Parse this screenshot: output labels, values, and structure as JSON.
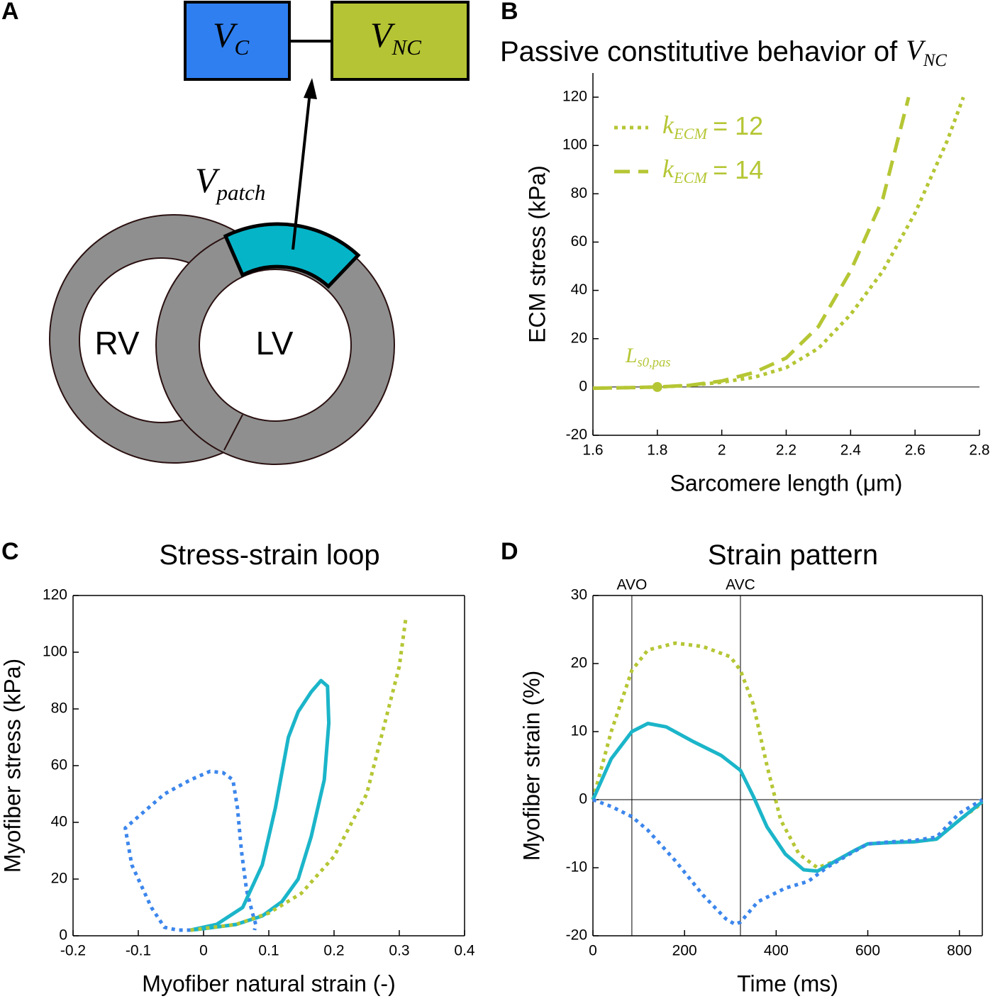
{
  "panels": [
    "A",
    "B",
    "C",
    "D"
  ],
  "diagram": {
    "boxes": [
      {
        "main": "V",
        "sub": "C"
      },
      {
        "main": "V",
        "sub": "NC"
      }
    ],
    "patch": {
      "main": "V",
      "sub": "patch"
    },
    "ventricles": [
      "RV",
      "LV"
    ]
  },
  "chart_data": [
    {
      "type": "line",
      "title": "Passive constitutive behavior of",
      "title_var": {
        "main": "V",
        "sub": "NC"
      },
      "x_label": "Sarcomere length (μm)",
      "y_label": "ECM stress (kPa)",
      "xlim": [
        1.6,
        2.8
      ],
      "xticks": [
        1.6,
        1.8,
        2,
        2.2,
        2.4,
        2.6,
        2.8
      ],
      "ylim": [
        -20,
        130
      ],
      "yticks": [
        -20,
        0,
        20,
        40,
        60,
        80,
        100,
        120
      ],
      "box": false,
      "zero_line": true,
      "legend": "upper left",
      "series": [
        {
          "name": {
            "main": "k",
            "sub": "ECM",
            "rest": "= 12"
          },
          "color": "#b5c634",
          "style": "dotted",
          "x": [
            1.6,
            1.7,
            1.8,
            1.9,
            2.0,
            2.1,
            2.2,
            2.3,
            2.4,
            2.5,
            2.6,
            2.7,
            2.75
          ],
          "values": [
            -0.5,
            -0.3,
            0,
            0.6,
            2,
            4,
            8,
            16,
            30,
            48,
            72,
            102,
            120
          ]
        },
        {
          "name": {
            "main": "k",
            "sub": "ECM",
            "rest": "= 14"
          },
          "color": "#b5c634",
          "style": "dashed",
          "x": [
            1.6,
            1.7,
            1.8,
            1.9,
            2.0,
            2.1,
            2.2,
            2.3,
            2.4,
            2.5,
            2.58
          ],
          "values": [
            -0.5,
            -0.3,
            0,
            0.7,
            2.5,
            6,
            12,
            25,
            48,
            78,
            120
          ]
        }
      ],
      "annotations": [
        {
          "label": {
            "main": "L",
            "sub": "s0,pas"
          },
          "x": 1.8,
          "y": 0
        }
      ]
    },
    {
      "type": "line",
      "title": "Stress-strain loop",
      "x_label": "Myofiber natural strain (-)",
      "y_label": "Myofiber stress (kPa)",
      "xlim": [
        -0.2,
        0.4
      ],
      "xticks": [
        -0.2,
        -0.1,
        0,
        0.1,
        0.2,
        0.3,
        0.4
      ],
      "ylim": [
        0,
        120
      ],
      "yticks": [
        0,
        20,
        40,
        60,
        80,
        100,
        120
      ],
      "box": true,
      "zero_line": false,
      "series": [
        {
          "color": "#3c86ec",
          "style": "dotted",
          "x": [
            -0.02,
            -0.04,
            -0.06,
            -0.08,
            -0.11,
            -0.12,
            -0.1,
            -0.06,
            -0.02,
            0.01,
            0.03,
            0.045,
            0.052,
            0.058,
            0.066,
            0.075,
            0.08,
            0.078
          ],
          "values": [
            2,
            2,
            3,
            10,
            25,
            38,
            42,
            50,
            55,
            58,
            57.5,
            55,
            45,
            30,
            16,
            8,
            4,
            2
          ]
        },
        {
          "color": "#1bb5c9",
          "style": "solid",
          "x": [
            -0.02,
            0.02,
            0.06,
            0.09,
            0.11,
            0.13,
            0.145,
            0.165,
            0.18,
            0.19,
            0.192,
            0.185,
            0.165,
            0.145,
            0.12,
            0.09,
            0.05,
            0.0,
            -0.02
          ],
          "values": [
            2,
            4,
            10,
            25,
            45,
            70,
            79,
            86,
            90,
            88,
            75,
            55,
            35,
            20,
            12,
            7,
            4,
            2.5,
            2
          ]
        },
        {
          "color": "#b5c634",
          "style": "dotted",
          "x": [
            -0.02,
            0.05,
            0.1,
            0.15,
            0.2,
            0.25,
            0.3,
            0.31
          ],
          "values": [
            2,
            4,
            8,
            15,
            28,
            50,
            95,
            112
          ]
        }
      ]
    },
    {
      "type": "line",
      "title": "Strain pattern",
      "x_label": "Time (ms)",
      "y_label": "Myofiber strain (%)",
      "xlim": [
        0,
        850
      ],
      "xticks": [
        0,
        200,
        400,
        600,
        800
      ],
      "ylim": [
        -20,
        30
      ],
      "yticks": [
        -20,
        -10,
        0,
        10,
        20,
        30
      ],
      "box": true,
      "zero_line": true,
      "markers": [
        {
          "label": "AVO",
          "x": 85
        },
        {
          "label": "AVC",
          "x": 322
        }
      ],
      "series": [
        {
          "color": "#b5c634",
          "style": "dotted",
          "x": [
            0,
            40,
            85,
            120,
            180,
            240,
            300,
            322,
            350,
            380,
            410,
            450,
            490,
            530,
            570,
            600,
            650,
            700,
            750,
            800,
            850
          ],
          "values": [
            0,
            10,
            19,
            22,
            23,
            22.5,
            21,
            19,
            14,
            5,
            -3,
            -8,
            -10,
            -9,
            -7.5,
            -6.5,
            -6.3,
            -6.2,
            -5.8,
            -3,
            -0.5
          ]
        },
        {
          "color": "#1bb5c9",
          "style": "solid",
          "x": [
            0,
            40,
            85,
            120,
            160,
            220,
            280,
            322,
            350,
            380,
            420,
            460,
            490,
            530,
            570,
            600,
            650,
            700,
            750,
            800,
            850
          ],
          "values": [
            0,
            6,
            10,
            11.2,
            10.7,
            8.5,
            6.5,
            4.3,
            0.5,
            -4,
            -8,
            -10.3,
            -10.5,
            -9,
            -7.5,
            -6.5,
            -6.3,
            -6.2,
            -5.8,
            -3,
            -0.3
          ]
        },
        {
          "color": "#3c86ec",
          "style": "dotted",
          "x": [
            0,
            40,
            85,
            120,
            180,
            240,
            290,
            310,
            322,
            360,
            420,
            470,
            510,
            560,
            600,
            650,
            700,
            750,
            800,
            850
          ],
          "values": [
            0,
            -1,
            -2.5,
            -4.5,
            -9,
            -14,
            -17.5,
            -18.3,
            -18,
            -15,
            -13,
            -12,
            -10,
            -8,
            -6.5,
            -6.2,
            -6,
            -5.5,
            -2,
            0
          ]
        }
      ]
    }
  ]
}
